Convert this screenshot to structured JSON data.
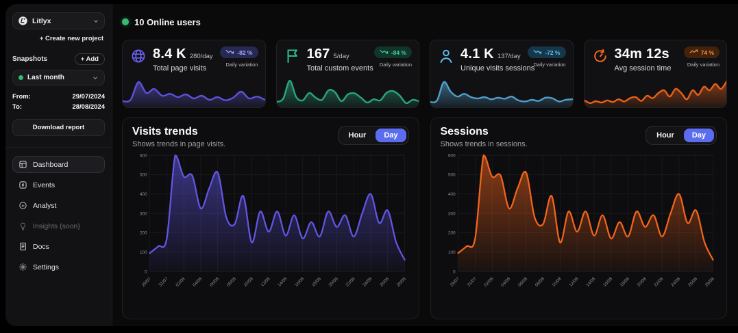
{
  "colors": {
    "online_dot": "#3cb96e",
    "toggle_active_bg": "#5b6cf0",
    "grid_line": "#232327",
    "axis_text": "#8d8d92"
  },
  "header": {
    "online_users": "10 Online users"
  },
  "sidebar": {
    "project": {
      "name": "Litlyx",
      "create_label": "+ Create new project"
    },
    "snapshots": {
      "label": "Snapshots",
      "add_label": "+ Add",
      "selected": "Last month",
      "selected_dot_color": "#2fbd6e",
      "from_label": "From:",
      "from_value": "29/07/2024",
      "to_label": "To:",
      "to_value": "28/08/2024",
      "download_label": "Download report"
    },
    "nav": [
      {
        "label": "Dashboard",
        "icon": "dashboard-icon",
        "active": true,
        "disabled": false
      },
      {
        "label": "Events",
        "icon": "events-icon",
        "active": false,
        "disabled": false
      },
      {
        "label": "Analyst",
        "icon": "analyst-icon",
        "active": false,
        "disabled": false
      },
      {
        "label": "Insights (soon)",
        "icon": "insights-icon",
        "active": false,
        "disabled": true
      },
      {
        "label": "Docs",
        "icon": "docs-icon",
        "active": false,
        "disabled": false
      },
      {
        "label": "Settings",
        "icon": "settings-icon",
        "active": false,
        "disabled": false
      }
    ]
  },
  "stat_cards": [
    {
      "icon": "globe-icon",
      "value": "8.4 K",
      "per_day": "280/day",
      "label": "Total page visits",
      "badge": "-82 %",
      "trend": "down",
      "badge_caption": "Daily variation",
      "accent": "#6a61ef",
      "line_color": "#5a52d8",
      "badge_bg": "#262a52",
      "badge_text": "#a9abff",
      "spark_values": [
        15,
        20,
        85,
        45,
        60,
        35,
        42,
        30,
        40,
        25,
        35,
        20,
        30,
        18,
        28,
        50,
        25,
        32,
        20
      ]
    },
    {
      "icon": "flag-icon",
      "value": "167",
      "per_day": "5/day",
      "label": "Total custom events",
      "badge": "-84 %",
      "trend": "down",
      "badge_caption": "Daily variation",
      "accent": "#2fbd8f",
      "line_color": "#27a57c",
      "badge_bg": "#123529",
      "badge_text": "#41d19e",
      "spark_values": [
        12,
        25,
        90,
        30,
        18,
        45,
        28,
        20,
        55,
        48,
        15,
        40,
        44,
        28,
        10,
        22,
        18,
        46,
        52,
        36,
        8,
        20,
        15
      ]
    },
    {
      "icon": "person-icon",
      "value": "4.1 K",
      "per_day": "137/day",
      "label": "Unique visits sessions",
      "badge": "-72 %",
      "trend": "down",
      "badge_caption": "Daily variation",
      "accent": "#5fb9e8",
      "line_color": "#4f9ecb",
      "badge_bg": "#16374a",
      "badge_text": "#63c5ef",
      "spark_values": [
        12,
        18,
        85,
        50,
        32,
        42,
        30,
        25,
        30,
        22,
        28,
        24,
        32,
        18,
        14,
        20,
        16,
        28,
        26,
        14,
        20,
        22
      ]
    },
    {
      "icon": "timer-icon",
      "value": "34m 12s",
      "per_day": "",
      "label": "Avg session time",
      "badge": "74 %",
      "trend": "up",
      "badge_caption": "Daily variation",
      "accent": "#f0661f",
      "line_color": "#e85f17",
      "badge_bg": "#41220d",
      "badge_text": "#ff8a3d",
      "spark_values": [
        18,
        8,
        15,
        10,
        18,
        12,
        22,
        14,
        26,
        30,
        16,
        35,
        26,
        45,
        55,
        32,
        60,
        45,
        22,
        55,
        38,
        68,
        55,
        78,
        60,
        88
      ]
    }
  ],
  "chart_data": [
    {
      "type": "area",
      "title": "Visits trends",
      "subtitle": "Shows trends in page visits.",
      "toggle_options": [
        "Hour",
        "Day"
      ],
      "toggle_selected": "Day",
      "x_tick_labels": [
        "29/07",
        "31/07",
        "02/08",
        "04/08",
        "06/08",
        "08/08",
        "10/08",
        "12/08",
        "14/08",
        "16/08",
        "18/08",
        "20/08",
        "22/08",
        "24/08",
        "26/08",
        "28/08"
      ],
      "values": [
        95,
        130,
        170,
        600,
        490,
        495,
        325,
        430,
        510,
        280,
        245,
        390,
        150,
        310,
        205,
        310,
        185,
        290,
        170,
        255,
        180,
        310,
        230,
        290,
        180,
        300,
        400,
        250,
        315,
        150,
        60
      ],
      "ylim": [
        0,
        600
      ],
      "y_ticks": [
        0,
        100,
        200,
        300,
        400,
        500,
        600
      ],
      "line_color": "#6156e3",
      "grid": true,
      "legend": "none"
    },
    {
      "type": "area",
      "title": "Sessions",
      "subtitle": "Shows trends in sessions.",
      "toggle_options": [
        "Hour",
        "Day"
      ],
      "toggle_selected": "Day",
      "x_tick_labels": [
        "29/07",
        "31/07",
        "02/08",
        "04/08",
        "06/08",
        "08/08",
        "10/08",
        "12/08",
        "14/08",
        "16/08",
        "18/08",
        "20/08",
        "22/08",
        "24/08",
        "26/08",
        "28/08"
      ],
      "values": [
        95,
        130,
        170,
        600,
        490,
        495,
        325,
        430,
        510,
        280,
        245,
        390,
        150,
        310,
        205,
        310,
        185,
        290,
        170,
        255,
        180,
        310,
        230,
        290,
        180,
        300,
        400,
        250,
        315,
        150,
        60
      ],
      "ylim": [
        0,
        600
      ],
      "y_ticks": [
        0,
        100,
        200,
        300,
        400,
        500,
        600
      ],
      "line_color": "#f2641c",
      "grid": true,
      "legend": "none"
    }
  ]
}
